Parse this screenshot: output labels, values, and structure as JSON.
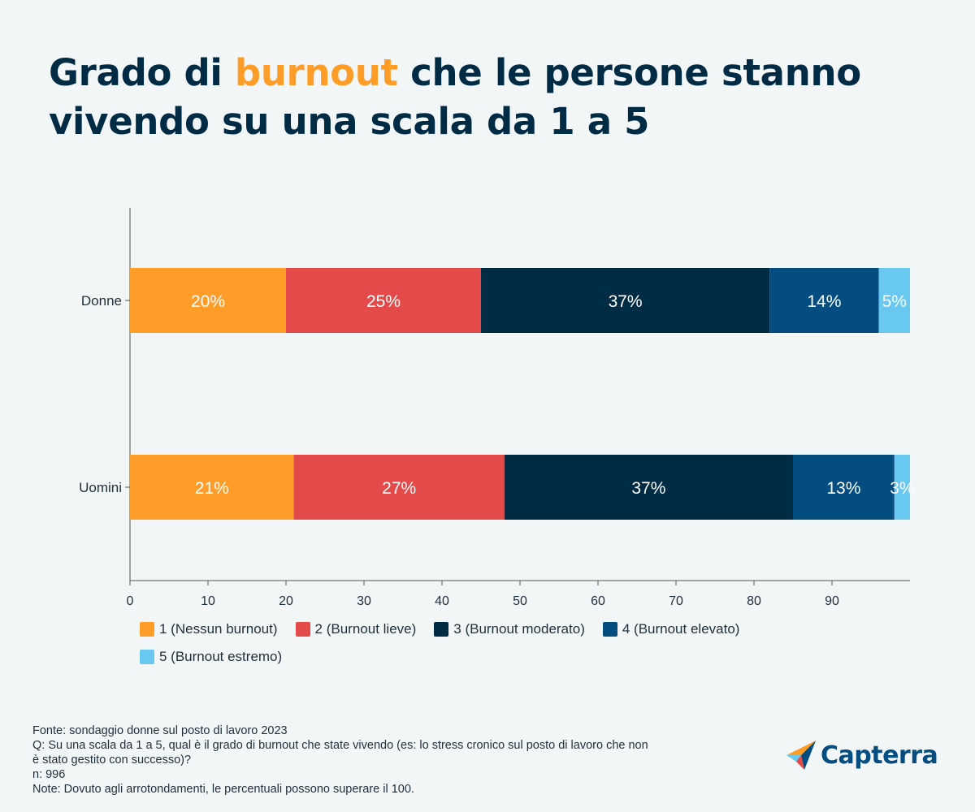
{
  "title": {
    "part1": "Grado di ",
    "highlight": "burnout",
    "part2": " che le persone stanno vivendo su una scala da 1 a 5"
  },
  "chart_data": {
    "type": "bar",
    "orientation": "horizontal",
    "stacked": true,
    "categories": [
      "Donne",
      "Uomini"
    ],
    "series": [
      {
        "name": "1 (Nessun burnout)",
        "color": "#ff9d28",
        "values": [
          20,
          21
        ],
        "labels": [
          "20%",
          "21%"
        ]
      },
      {
        "name": "2 (Burnout lieve)",
        "color": "#e44a4a",
        "values": [
          25,
          27
        ],
        "labels": [
          "25%",
          "27%"
        ]
      },
      {
        "name": "3 (Burnout moderato)",
        "color": "#002b44",
        "values": [
          37,
          37
        ],
        "labels": [
          "37%",
          "37%"
        ]
      },
      {
        "name": "4 (Burnout elevato)",
        "color": "#044d80",
        "values": [
          14,
          13
        ],
        "labels": [
          "14%",
          "13%"
        ]
      },
      {
        "name": "5 (Burnout estremo)",
        "color": "#68c8f0",
        "values": [
          5,
          3
        ],
        "labels": [
          "5%",
          "3%"
        ]
      }
    ],
    "xlim": [
      0,
      100
    ],
    "xticks": [
      0,
      10,
      20,
      30,
      40,
      50,
      60,
      70,
      80,
      90
    ],
    "xlabel": "",
    "ylabel": "",
    "legend_position": "bottom-left",
    "grid": false
  },
  "footer": {
    "source": "Fonte: sondaggio donne sul posto di lavoro 2023",
    "question_line1": "Q: Su una scala da 1 a 5, qual è il grado di burnout che state vivendo (es: lo stress cronico sul posto di lavoro che non",
    "question_line2": "è stato gestito con successo)?",
    "sample": "n: 996",
    "note": "Note: Dovuto agli arrotondamenti, le percentuali possono superare il 100."
  },
  "brand": {
    "name": "Capterra",
    "icon": "capterra-arrow-icon"
  }
}
